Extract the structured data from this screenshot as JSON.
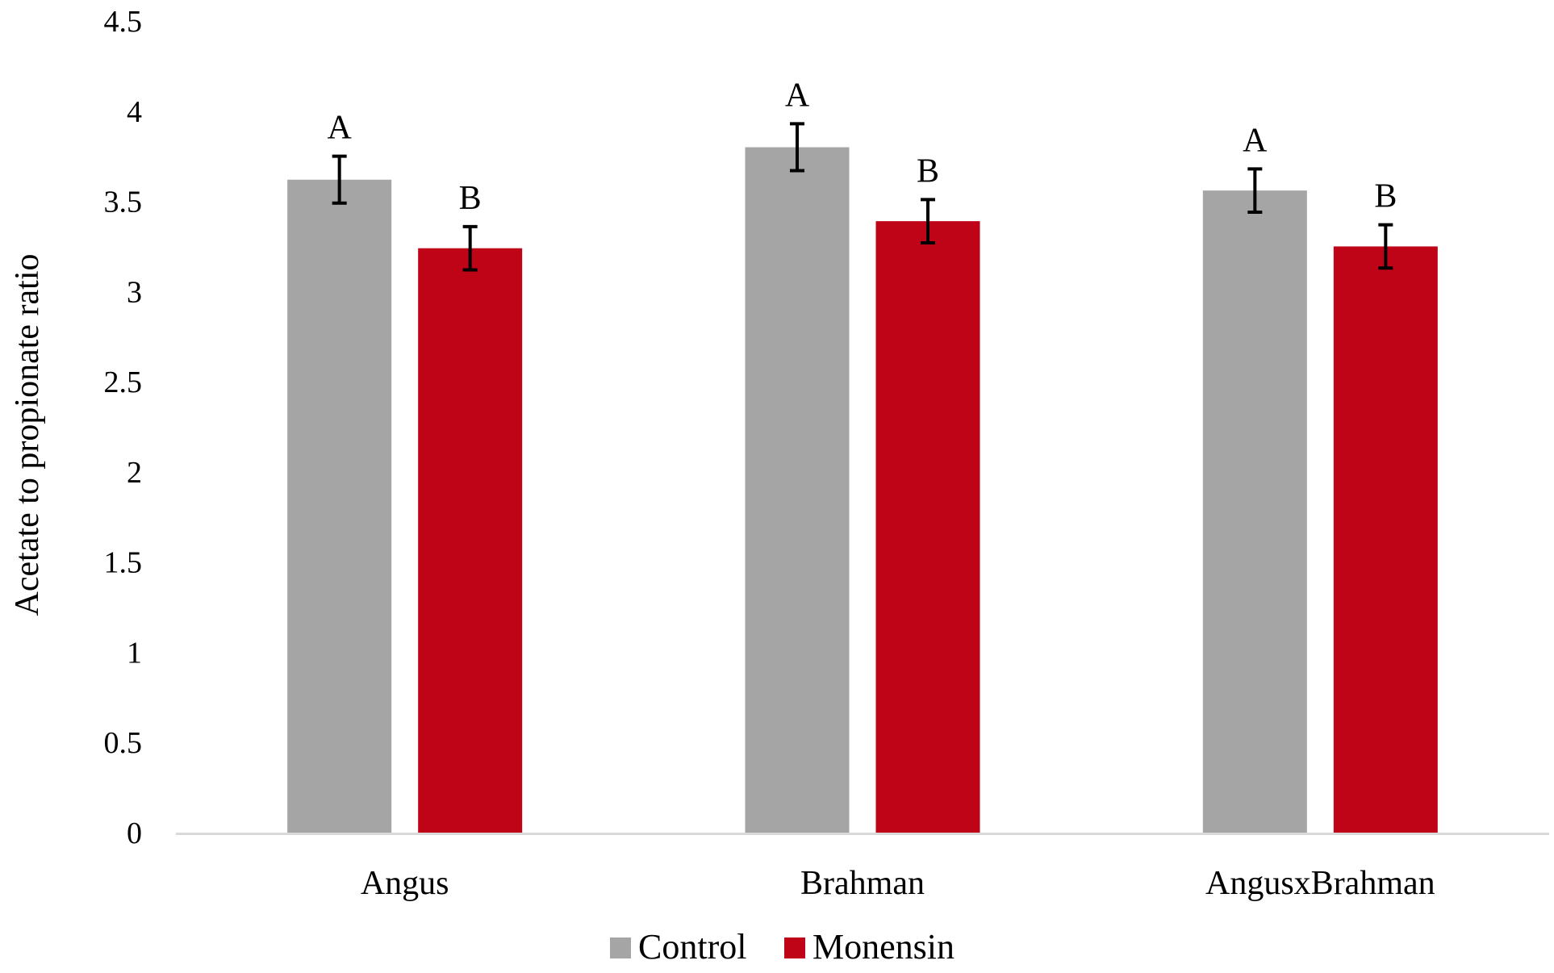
{
  "chart_data": {
    "type": "bar",
    "title": "",
    "xlabel": "",
    "ylabel": "Acetate to propionate ratio",
    "ylim": [
      0,
      4.5
    ],
    "yticks": [
      "0",
      "0.5",
      "1",
      "1.5",
      "2",
      "2.5",
      "3",
      "3.5",
      "4",
      "4.5"
    ],
    "categories": [
      "Angus",
      "Brahman",
      "AngusxBrahman"
    ],
    "grid": false,
    "legend_position": "bottom",
    "series": [
      {
        "name": "Control",
        "color": "#a5a5a5",
        "values": [
          3.62,
          3.8,
          3.56
        ],
        "error": [
          0.13,
          0.13,
          0.12
        ],
        "significance": [
          "A",
          "A",
          "A"
        ]
      },
      {
        "name": "Monensin",
        "color": "#c00418",
        "values": [
          3.24,
          3.39,
          3.25
        ],
        "error": [
          0.12,
          0.12,
          0.12
        ],
        "significance": [
          "B",
          "B",
          "B"
        ]
      }
    ]
  }
}
